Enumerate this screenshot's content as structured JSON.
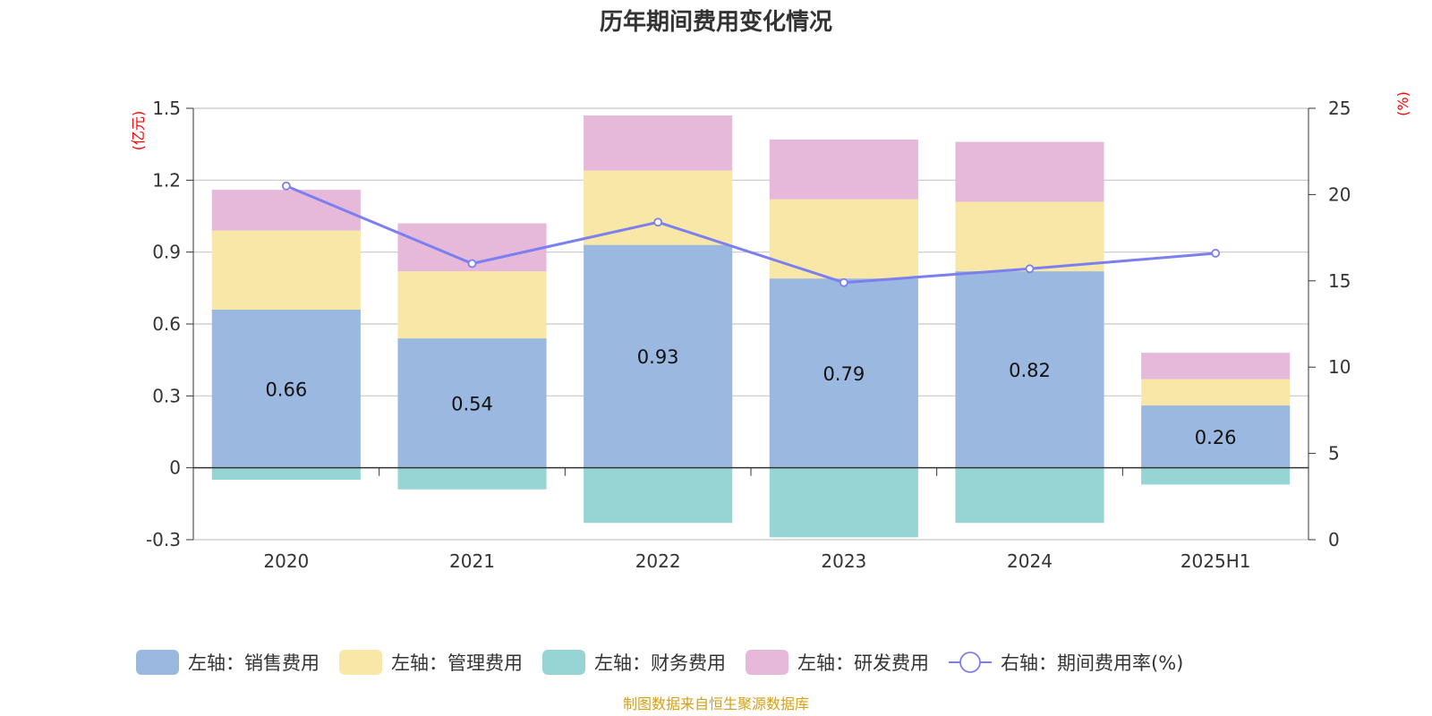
{
  "colors": {
    "sales": "#9bb8e0",
    "admin": "#f8e7a6",
    "finance": "#97d4d4",
    "rnd": "#e6b9da",
    "rate_line": "#7b7ff0",
    "grid": "#c8c8c8",
    "axis": "#333333",
    "unit": "#ff0000",
    "source": "#d4a017"
  },
  "source_note": "制图数据来自恒生聚源数据库",
  "chart_data": {
    "type": "bar",
    "title": "历年期间费用变化情况",
    "categories": [
      "2020",
      "2021",
      "2022",
      "2023",
      "2024",
      "2025H1"
    ],
    "left_axis": {
      "unit_label": "(亿元)",
      "ylim": [
        -0.3,
        1.5
      ],
      "ticks": [
        "-0.3",
        "0",
        "0.3",
        "0.6",
        "0.9",
        "1.2",
        "1.5"
      ]
    },
    "right_axis": {
      "unit_label": "(%)",
      "ylim": [
        0,
        25
      ],
      "ticks": [
        "0",
        "5",
        "10",
        "15",
        "20",
        "25"
      ]
    },
    "grid": true,
    "legend_position": "bottom",
    "series": [
      {
        "name": "左轴：销售费用",
        "key": "sales",
        "axis": "left",
        "kind": "stacked-bar",
        "values": [
          0.66,
          0.54,
          0.93,
          0.79,
          0.82,
          0.26
        ],
        "labels": [
          "0.66",
          "0.54",
          "0.93",
          "0.79",
          "0.82",
          "0.26"
        ]
      },
      {
        "name": "左轴：管理费用",
        "key": "admin",
        "axis": "left",
        "kind": "stacked-bar",
        "values": [
          0.33,
          0.28,
          0.31,
          0.33,
          0.29,
          0.11
        ]
      },
      {
        "name": "左轴：财务费用",
        "key": "finance",
        "axis": "left",
        "kind": "stacked-bar",
        "values": [
          -0.05,
          -0.09,
          -0.23,
          -0.29,
          -0.23,
          -0.07
        ]
      },
      {
        "name": "左轴：研发费用",
        "key": "rnd",
        "axis": "left",
        "kind": "stacked-bar",
        "values": [
          0.17,
          0.2,
          0.23,
          0.25,
          0.25,
          0.11
        ]
      },
      {
        "name": "右轴：期间费用率(%)",
        "key": "rate_line",
        "axis": "right",
        "kind": "line",
        "values": [
          20.5,
          16.0,
          18.4,
          14.9,
          15.7,
          16.6
        ]
      }
    ]
  }
}
